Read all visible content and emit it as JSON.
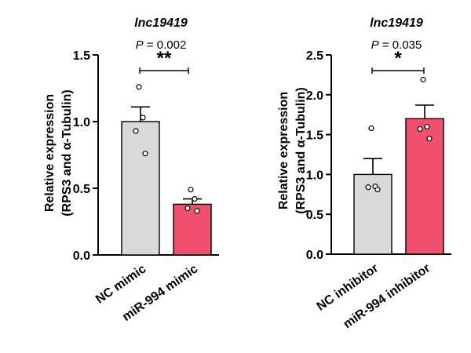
{
  "chart_data": [
    {
      "type": "bar",
      "title": "lnc19419",
      "p_label": "P",
      "p_value": "= 0.002",
      "significance": "**",
      "ylabel_line1": "Relative expression",
      "ylabel_line2": "(RPS3 and α-Tubulin)",
      "ylim": [
        0,
        1.5
      ],
      "yticks": [
        "0.0",
        "0.5",
        "1.0",
        "1.5"
      ],
      "categories": [
        "NC mimic",
        "miR-994 mimic"
      ],
      "values": [
        1.0,
        0.38
      ],
      "errors": [
        0.11,
        0.04
      ],
      "colors": [
        "#d9d9d9",
        "#f0506e"
      ],
      "points": [
        [
          1.26,
          1.03,
          0.93,
          0.76
        ],
        [
          0.49,
          0.42,
          0.35,
          0.33
        ]
      ]
    },
    {
      "type": "bar",
      "title": "lnc19419",
      "p_label": "P",
      "p_value": "= 0.035",
      "significance": "*",
      "ylabel_line1": "Relative expression",
      "ylabel_line2": "(RPS3 and α-Tubulin)",
      "ylim": [
        0,
        2.5
      ],
      "yticks": [
        "0.0",
        "0.5",
        "1.0",
        "1.5",
        "2.0",
        "2.5"
      ],
      "categories": [
        "NC inhibitor",
        "miR-994 inhibitor"
      ],
      "values": [
        1.0,
        1.7
      ],
      "errors": [
        0.2,
        0.17
      ],
      "colors": [
        "#d9d9d9",
        "#f0506e"
      ],
      "points": [
        [
          1.58,
          0.85,
          0.84,
          0.81
        ],
        [
          2.19,
          1.6,
          1.57,
          1.45
        ]
      ]
    }
  ]
}
